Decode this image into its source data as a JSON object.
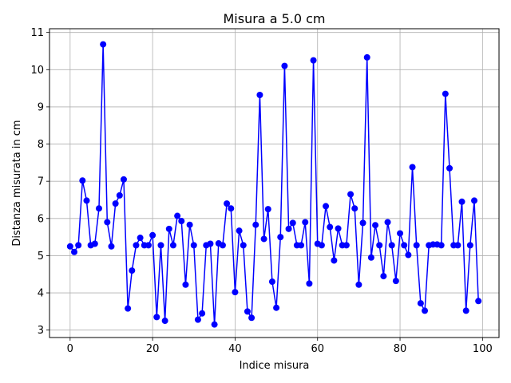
{
  "chart_data": {
    "type": "line",
    "title": "Misura a 5.0 cm",
    "xlabel": "Indice misura",
    "ylabel": "Distanza misurata in cm",
    "xlim": [
      -5,
      104
    ],
    "ylim": [
      2.8,
      11.1
    ],
    "xticks": [
      0,
      20,
      40,
      60,
      80,
      100
    ],
    "yticks": [
      3,
      4,
      5,
      6,
      7,
      8,
      9,
      10,
      11
    ],
    "grid": true,
    "series": [
      {
        "color": "#0000ff",
        "marker": "circle",
        "x": [
          0,
          1,
          2,
          3,
          4,
          5,
          6,
          7,
          8,
          9,
          10,
          11,
          12,
          13,
          14,
          15,
          16,
          17,
          18,
          19,
          20,
          21,
          22,
          23,
          24,
          25,
          26,
          27,
          28,
          29,
          30,
          31,
          32,
          33,
          34,
          35,
          36,
          37,
          38,
          39,
          40,
          41,
          42,
          43,
          44,
          45,
          46,
          47,
          48,
          49,
          50,
          51,
          52,
          53,
          54,
          55,
          56,
          57,
          58,
          59,
          60,
          61,
          62,
          63,
          64,
          65,
          66,
          67,
          68,
          69,
          70,
          71,
          72,
          73,
          74,
          75,
          76,
          77,
          78,
          79,
          80,
          81,
          82,
          83,
          84,
          85,
          86,
          87,
          88,
          89,
          90,
          91,
          92,
          93,
          94,
          95,
          96,
          97,
          98,
          99
        ],
        "y": [
          5.25,
          5.1,
          5.28,
          7.02,
          6.48,
          5.28,
          5.32,
          6.27,
          10.68,
          5.9,
          5.25,
          6.4,
          6.62,
          7.05,
          3.58,
          4.6,
          5.28,
          5.48,
          5.28,
          5.28,
          5.55,
          3.35,
          5.28,
          3.25,
          5.72,
          5.28,
          6.07,
          5.93,
          4.22,
          5.83,
          5.28,
          3.28,
          3.45,
          5.28,
          5.32,
          3.15,
          5.33,
          5.28,
          6.4,
          6.27,
          4.02,
          5.67,
          5.28,
          3.5,
          3.33,
          5.83,
          9.32,
          5.45,
          6.25,
          4.3,
          3.6,
          5.5,
          10.1,
          5.72,
          5.88,
          5.28,
          5.28,
          5.9,
          4.25,
          10.25,
          5.32,
          5.28,
          6.33,
          5.77,
          4.87,
          5.73,
          5.28,
          5.28,
          6.65,
          6.27,
          4.22,
          5.88,
          10.33,
          4.95,
          5.82,
          5.28,
          4.45,
          5.9,
          5.28,
          4.32,
          5.6,
          5.28,
          5.02,
          7.38,
          5.28,
          3.72,
          3.52,
          5.28,
          5.3,
          5.3,
          5.28,
          9.35,
          7.35,
          5.28,
          5.28,
          6.45,
          3.52,
          5.28,
          6.48,
          3.78
        ]
      }
    ]
  }
}
